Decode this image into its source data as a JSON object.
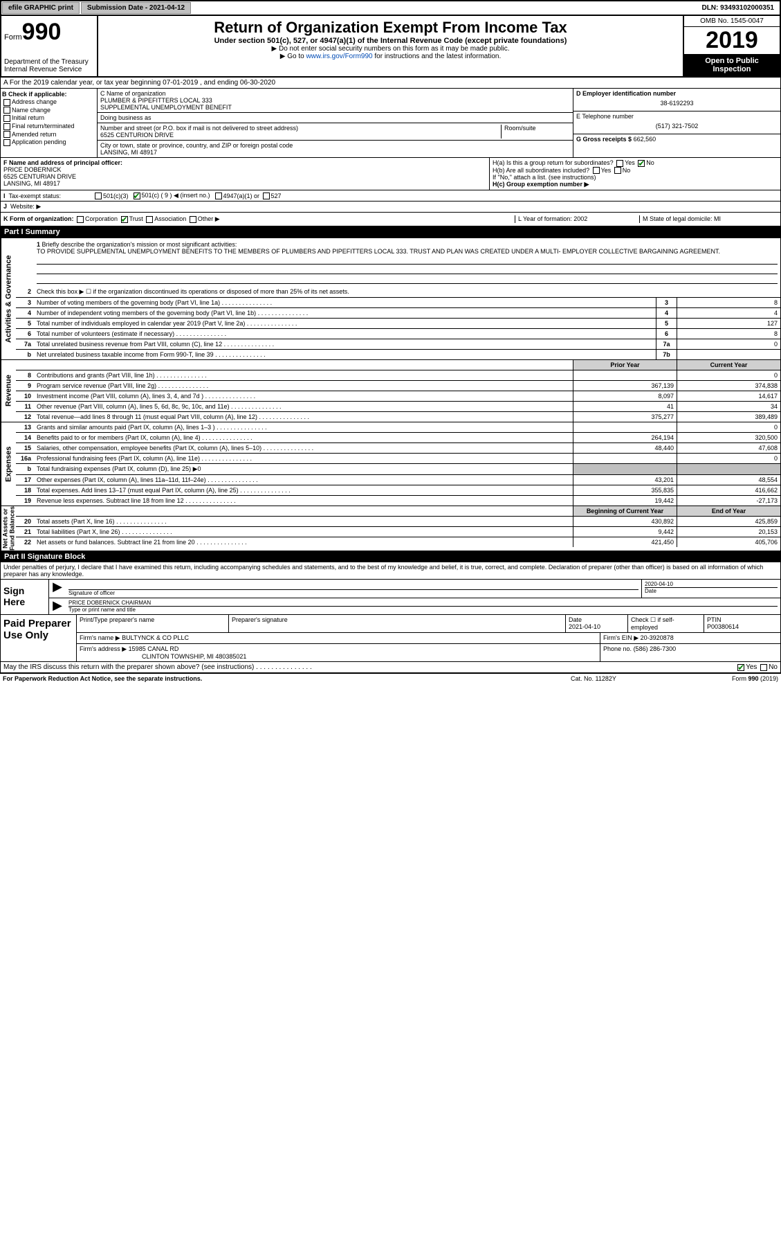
{
  "topbar": {
    "efile": "efile GRAPHIC print",
    "submission_label": "Submission Date - 2021-04-12",
    "dln": "DLN: 93493102000351"
  },
  "header": {
    "form_label": "Form",
    "form_num": "990",
    "dept": "Department of the Treasury\nInternal Revenue Service",
    "title": "Return of Organization Exempt From Income Tax",
    "sub1": "Under section 501(c), 527, or 4947(a)(1) of the Internal Revenue Code (except private foundations)",
    "sub2": "▶ Do not enter social security numbers on this form as it may be made public.",
    "sub3_pre": "▶ Go to ",
    "sub3_link": "www.irs.gov/Form990",
    "sub3_post": " for instructions and the latest information.",
    "omb": "OMB No. 1545-0047",
    "year": "2019",
    "inspect": "Open to Public Inspection"
  },
  "rowA": "A For the 2019 calendar year, or tax year beginning 07-01-2019     , and ending 06-30-2020",
  "boxB": {
    "title": "B Check if applicable:",
    "items": [
      "Address change",
      "Name change",
      "Initial return",
      "Final return/terminated",
      "Amended return",
      "Application pending"
    ]
  },
  "boxC": {
    "name_label": "C Name of organization",
    "name": "PLUMBER & PIPEFITTERS LOCAL 333\nSUPPLEMENTAL UNEMPLOYMENT BENEFIT",
    "dba_label": "Doing business as",
    "street_label": "Number and street (or P.O. box if mail is not delivered to street address)",
    "street": "6525 CENTURION DRIVE",
    "room_label": "Room/suite",
    "city_label": "City or town, state or province, country, and ZIP or foreign postal code",
    "city": "LANSING, MI  48917"
  },
  "boxD": {
    "label": "D Employer identification number",
    "value": "38-6192293"
  },
  "boxE": {
    "label": "E Telephone number",
    "value": "(517) 321-7502"
  },
  "boxG": {
    "label": "G Gross receipts $",
    "value": "662,560"
  },
  "boxF": {
    "label": "F  Name and address of principal officer:",
    "name": "PRICE DOBERNICK",
    "addr1": "6525 CENTURIAN DRIVE",
    "addr2": "LANSING, MI  48917"
  },
  "boxH": {
    "ha": "H(a)  Is this a group return for subordinates?",
    "ha_no": "No",
    "hb": "H(b)  Are all subordinates included?",
    "hb_note": "If \"No,\" attach a list. (see instructions)",
    "hc": "H(c)  Group exemption number ▶"
  },
  "taxexempt": {
    "i_label": "I",
    "label": "Tax-exempt status:",
    "c3": "501(c)(3)",
    "c": "501(c) ( 9 ) ◀ (insert no.)",
    "a1": "4947(a)(1) or",
    "s527": "527"
  },
  "rowJ": {
    "label": "J",
    "text": "Website: ▶"
  },
  "rowK": {
    "label": "K Form of organization:",
    "opts": [
      "Corporation",
      "Trust",
      "Association",
      "Other ▶"
    ],
    "L": "L Year of formation: 2002",
    "M": "M State of legal domicile: MI"
  },
  "part1": {
    "hdr": "Part I      Summary"
  },
  "mission": {
    "num": "1",
    "label": "Briefly describe the organization's mission or most significant activities:",
    "text": "TO PROVIDE SUPPLEMENTAL UNEMPLOYMENT BENEFITS TO THE MEMBERS OF PLUMBERS AND PIPEFITTERS LOCAL 333. TRUST AND PLAN WAS CREATED UNDER A MULTI- EMPLOYER COLLECTIVE BARGAINING AGREEMENT."
  },
  "lines_ag": [
    {
      "n": "2",
      "d": "Check this box ▶ ☐ if the organization discontinued its operations or disposed of more than 25% of its net assets."
    },
    {
      "n": "3",
      "d": "Number of voting members of the governing body (Part VI, line 1a)",
      "box": "3",
      "v": "8"
    },
    {
      "n": "4",
      "d": "Number of independent voting members of the governing body (Part VI, line 1b)",
      "box": "4",
      "v": "4"
    },
    {
      "n": "5",
      "d": "Total number of individuals employed in calendar year 2019 (Part V, line 2a)",
      "box": "5",
      "v": "127"
    },
    {
      "n": "6",
      "d": "Total number of volunteers (estimate if necessary)",
      "box": "6",
      "v": "8"
    },
    {
      "n": "7a",
      "d": "Total unrelated business revenue from Part VIII, column (C), line 12",
      "box": "7a",
      "v": "0"
    },
    {
      "n": "b",
      "d": "Net unrelated business taxable income from Form 990-T, line 39",
      "box": "7b",
      "v": ""
    }
  ],
  "col_hdrs": {
    "prior": "Prior Year",
    "current": "Current Year"
  },
  "lines_rev": [
    {
      "n": "8",
      "d": "Contributions and grants (Part VIII, line 1h)",
      "p": "",
      "c": "0"
    },
    {
      "n": "9",
      "d": "Program service revenue (Part VIII, line 2g)",
      "p": "367,139",
      "c": "374,838"
    },
    {
      "n": "10",
      "d": "Investment income (Part VIII, column (A), lines 3, 4, and 7d )",
      "p": "8,097",
      "c": "14,617"
    },
    {
      "n": "11",
      "d": "Other revenue (Part VIII, column (A), lines 5, 6d, 8c, 9c, 10c, and 11e)",
      "p": "41",
      "c": "34"
    },
    {
      "n": "12",
      "d": "Total revenue—add lines 8 through 11 (must equal Part VIII, column (A), line 12)",
      "p": "375,277",
      "c": "389,489"
    }
  ],
  "lines_exp": [
    {
      "n": "13",
      "d": "Grants and similar amounts paid (Part IX, column (A), lines 1–3 )",
      "p": "",
      "c": "0"
    },
    {
      "n": "14",
      "d": "Benefits paid to or for members (Part IX, column (A), line 4)",
      "p": "264,194",
      "c": "320,500"
    },
    {
      "n": "15",
      "d": "Salaries, other compensation, employee benefits (Part IX, column (A), lines 5–10)",
      "p": "48,440",
      "c": "47,608"
    },
    {
      "n": "16a",
      "d": "Professional fundraising fees (Part IX, column (A), line 11e)",
      "p": "",
      "c": "0"
    },
    {
      "n": "b",
      "d": "Total fundraising expenses (Part IX, column (D), line 25) ▶0",
      "shade": true
    },
    {
      "n": "17",
      "d": "Other expenses (Part IX, column (A), lines 11a–11d, 11f–24e)",
      "p": "43,201",
      "c": "48,554"
    },
    {
      "n": "18",
      "d": "Total expenses. Add lines 13–17 (must equal Part IX, column (A), line 25)",
      "p": "355,835",
      "c": "416,662"
    },
    {
      "n": "19",
      "d": "Revenue less expenses. Subtract line 18 from line 12",
      "p": "19,442",
      "c": "-27,173"
    }
  ],
  "col_hdrs2": {
    "begin": "Beginning of Current Year",
    "end": "End of Year"
  },
  "lines_na": [
    {
      "n": "20",
      "d": "Total assets (Part X, line 16)",
      "p": "430,892",
      "c": "425,859"
    },
    {
      "n": "21",
      "d": "Total liabilities (Part X, line 26)",
      "p": "9,442",
      "c": "20,153"
    },
    {
      "n": "22",
      "d": "Net assets or fund balances. Subtract line 21 from line 20",
      "p": "421,450",
      "c": "405,706"
    }
  ],
  "vside": {
    "ag": "Activities & Governance",
    "rev": "Revenue",
    "exp": "Expenses",
    "na": "Net Assets or\nFund Balances"
  },
  "part2": {
    "hdr": "Part II      Signature Block"
  },
  "sig_intro": "Under penalties of perjury, I declare that I have examined this return, including accompanying schedules and statements, and to the best of my knowledge and belief, it is true, correct, and complete. Declaration of preparer (other than officer) is based on all information of which preparer has any knowledge.",
  "sign": {
    "label": "Sign Here",
    "sig_label": "Signature of officer",
    "date_label": "Date",
    "date": "2020-04-10",
    "name": "PRICE DOBERNICK  CHAIRMAN",
    "name_label": "Type or print name and title"
  },
  "paid": {
    "label": "Paid Preparer Use Only",
    "h1": "Print/Type preparer's name",
    "h2": "Preparer's signature",
    "h3": "Date",
    "date": "2021-04-10",
    "h4": "Check ☐ if self-employed",
    "h5": "PTIN",
    "ptin": "P00380614",
    "firm_label": "Firm's name      ▶",
    "firm": "BULTYNCK & CO PLLC",
    "ein_label": "Firm's EIN ▶",
    "ein": "20-3920878",
    "addr_label": "Firm's address ▶",
    "addr1": "15985 CANAL RD",
    "addr2": "CLINTON TOWNSHIP, MI  480385021",
    "phone_label": "Phone no.",
    "phone": "(586) 286-7300"
  },
  "discuss": "May the IRS discuss this return with the preparer shown above? (see instructions)",
  "foot": {
    "l": "For Paperwork Reduction Act Notice, see the separate instructions.",
    "m": "Cat. No. 11282Y",
    "r": "Form 990 (2019)"
  }
}
